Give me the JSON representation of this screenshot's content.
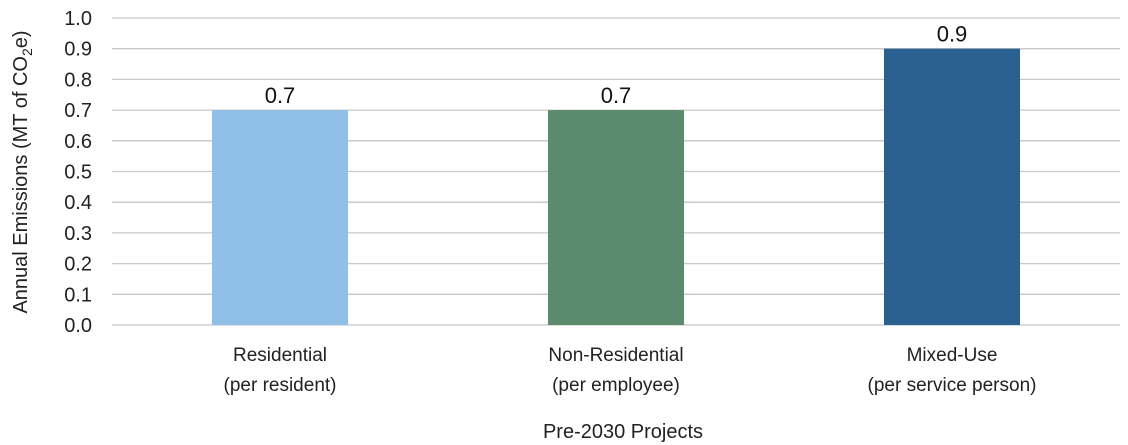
{
  "chart_data": {
    "type": "bar",
    "categories": [
      {
        "line1": "Residential",
        "line2": "(per resident)"
      },
      {
        "line1": "Non-Residential",
        "line2": "(per employee)"
      },
      {
        "line1": "Mixed-Use",
        "line2": "(per service person)"
      }
    ],
    "values": [
      0.7,
      0.7,
      0.9
    ],
    "data_labels": [
      "0.7",
      "0.7",
      "0.9"
    ],
    "colors": [
      "#90bfe8",
      "#5b8b6d",
      "#2a6190"
    ],
    "xlabel": "Pre-2030 Projects",
    "ylabel": {
      "main": "Annual Emissions (MT of CO",
      "sub": "2",
      "tail": "e)"
    },
    "ylim": [
      0,
      1.0
    ],
    "yticks": [
      "0.0",
      "0.1",
      "0.2",
      "0.3",
      "0.4",
      "0.5",
      "0.6",
      "0.7",
      "0.8",
      "0.9",
      "1.0"
    ],
    "grid": true,
    "gridline_color": "#c8c8c8"
  }
}
